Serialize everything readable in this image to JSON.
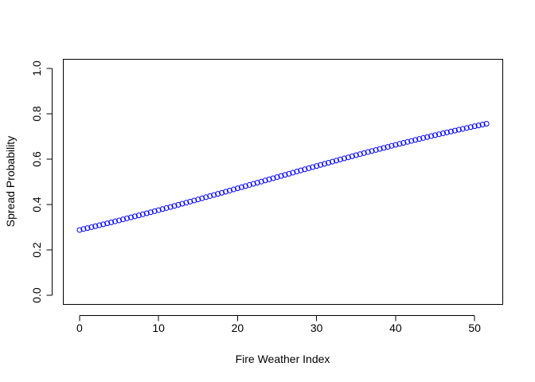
{
  "chart_data": {
    "type": "scatter",
    "title": "",
    "xlabel": "Fire Weather Index",
    "ylabel": "Spread Probability",
    "xlim": [
      -2.06,
      53.56
    ],
    "ylim": [
      -0.04,
      1.04
    ],
    "xticks": [
      0,
      10,
      20,
      30,
      40,
      50
    ],
    "yticks": [
      0.0,
      0.2,
      0.4,
      0.6,
      0.8,
      1.0
    ],
    "xtick_labels": [
      "0",
      "10",
      "20",
      "30",
      "40",
      "50"
    ],
    "ytick_labels": [
      "0.0",
      "0.2",
      "0.4",
      "0.6",
      "0.8",
      "1.0"
    ],
    "grid": false,
    "legend": "none",
    "series": [
      {
        "marker": "open-circle",
        "color": "#0000ff",
        "x_start": 0,
        "x_end": 51.5,
        "x_step": 0.5,
        "y_start": 0.288,
        "y_end": 0.756
      }
    ]
  }
}
